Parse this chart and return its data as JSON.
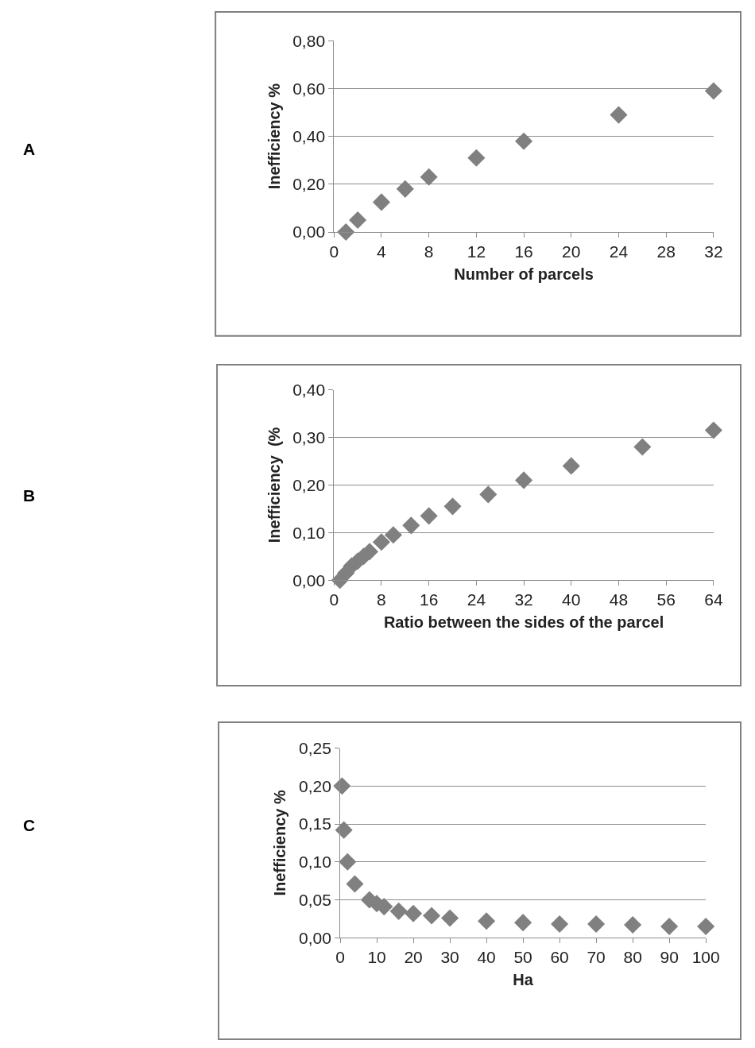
{
  "chart_data": [
    {
      "type": "scatter",
      "annotations": [
        "A"
      ],
      "xlabel": "Number of parcels",
      "ylabel": "Inefficiency %",
      "marker": "diamond",
      "grid": "y",
      "x": [
        1,
        2,
        4,
        6,
        8,
        12,
        16,
        24,
        32
      ],
      "series": [
        {
          "color": "#808080",
          "values": [
            0.0,
            0.05,
            0.125,
            0.18,
            0.23,
            0.31,
            0.38,
            0.49,
            0.59
          ]
        }
      ],
      "xlim": [
        0,
        32
      ],
      "xticks": [
        0,
        4,
        8,
        12,
        16,
        20,
        24,
        28,
        32
      ],
      "ylim": [
        0,
        0.8
      ],
      "yticks": [
        {
          "value": 0,
          "label": "0,00"
        },
        {
          "value": 0.2,
          "label": "0,20"
        },
        {
          "value": 0.4,
          "label": "0,40"
        },
        {
          "value": 0.6,
          "label": "0,60"
        },
        {
          "value": 0.8,
          "label": "0,80"
        }
      ]
    },
    {
      "type": "scatter",
      "annotations": [
        "B"
      ],
      "xlabel": "Ratio between the sides of the parcel",
      "ylabel": "Inefficiency  (%",
      "marker": "diamond",
      "grid": "y",
      "x": [
        1,
        2,
        3,
        4,
        5,
        6,
        8,
        10,
        13,
        16,
        20,
        26,
        32,
        40,
        52,
        64
      ],
      "series": [
        {
          "color": "#808080",
          "values": [
            0.0,
            0.015,
            0.03,
            0.04,
            0.05,
            0.06,
            0.08,
            0.095,
            0.115,
            0.135,
            0.155,
            0.18,
            0.21,
            0.24,
            0.28,
            0.315
          ]
        }
      ],
      "xlim": [
        0,
        64
      ],
      "xticks": [
        0,
        8,
        16,
        24,
        32,
        40,
        48,
        56,
        64
      ],
      "ylim": [
        0,
        0.4
      ],
      "yticks": [
        {
          "value": 0,
          "label": "0,00"
        },
        {
          "value": 0.1,
          "label": "0,10"
        },
        {
          "value": 0.2,
          "label": "0,20"
        },
        {
          "value": 0.3,
          "label": "0,30"
        },
        {
          "value": 0.4,
          "label": "0,40"
        }
      ]
    },
    {
      "type": "scatter",
      "annotations": [
        "C"
      ],
      "xlabel": "Ha",
      "ylabel": "Inefficiency %",
      "marker": "diamond",
      "grid": "y",
      "x": [
        0.5,
        1,
        2,
        4,
        8,
        10,
        12,
        16,
        20,
        25,
        30,
        40,
        50,
        60,
        70,
        80,
        90,
        100
      ],
      "series": [
        {
          "color": "#808080",
          "values": [
            0.2,
            0.142,
            0.1,
            0.071,
            0.05,
            0.045,
            0.041,
            0.035,
            0.032,
            0.029,
            0.026,
            0.022,
            0.02,
            0.018,
            0.018,
            0.017,
            0.015,
            0.015
          ]
        }
      ],
      "xlim": [
        0,
        100
      ],
      "xticks": [
        0,
        10,
        20,
        30,
        40,
        50,
        60,
        70,
        80,
        90,
        100
      ],
      "ylim": [
        0,
        0.25
      ],
      "yticks": [
        {
          "value": 0,
          "label": "0,00"
        },
        {
          "value": 0.05,
          "label": "0,05"
        },
        {
          "value": 0.1,
          "label": "0,10"
        },
        {
          "value": 0.15,
          "label": "0,15"
        },
        {
          "value": 0.2,
          "label": "0,20"
        },
        {
          "value": 0.25,
          "label": "0,25"
        }
      ]
    }
  ]
}
